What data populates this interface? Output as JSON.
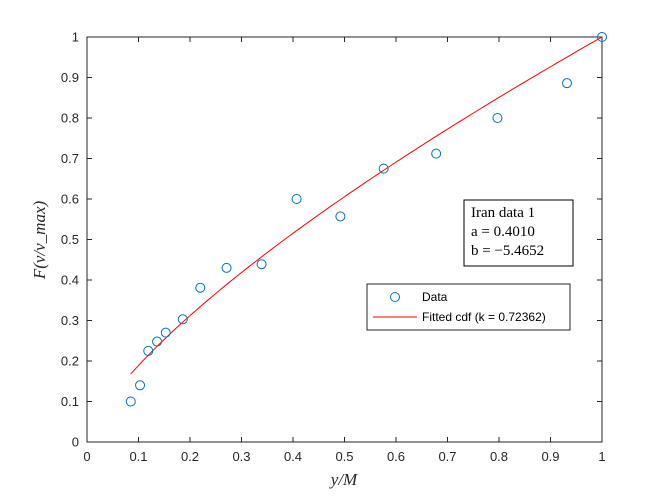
{
  "chart_data": {
    "type": "scatter",
    "xlabel": "y/M",
    "ylabel": "F(ν/ν_max)",
    "xlim": [
      0,
      1
    ],
    "ylim": [
      0,
      1
    ],
    "xticks": [
      "0",
      "0.1",
      "0.2",
      "0.3",
      "0.4",
      "0.5",
      "0.6",
      "0.7",
      "0.8",
      "0.9",
      "1"
    ],
    "yticks": [
      "0",
      "0.1",
      "0.2",
      "0.3",
      "0.4",
      "0.5",
      "0.6",
      "0.7",
      "0.8",
      "0.9",
      "1"
    ],
    "grid": false,
    "legend_position": "center-right",
    "series": [
      {
        "name": "Data",
        "kind": "markers",
        "color": "#0072BD",
        "x": [
          0.085,
          0.103,
          0.119,
          0.136,
          0.153,
          0.186,
          0.22,
          0.271,
          0.339,
          0.407,
          0.492,
          0.576,
          0.678,
          0.797,
          0.932,
          1.0
        ],
        "y": [
          0.1,
          0.14,
          0.225,
          0.248,
          0.27,
          0.303,
          0.381,
          0.43,
          0.439,
          0.6,
          0.557,
          0.675,
          0.712,
          0.8,
          0.886,
          1.0
        ]
      },
      {
        "name": "Fitted cdf (k = 0.72362)",
        "kind": "line",
        "color": "#FF0000",
        "exponent": 0.72362,
        "x_start": 0.085,
        "x_end": 1.0
      }
    ],
    "annotation": {
      "lines": [
        "Iran data 1",
        "a = 0.4010",
        "b = −5.4652"
      ]
    }
  }
}
